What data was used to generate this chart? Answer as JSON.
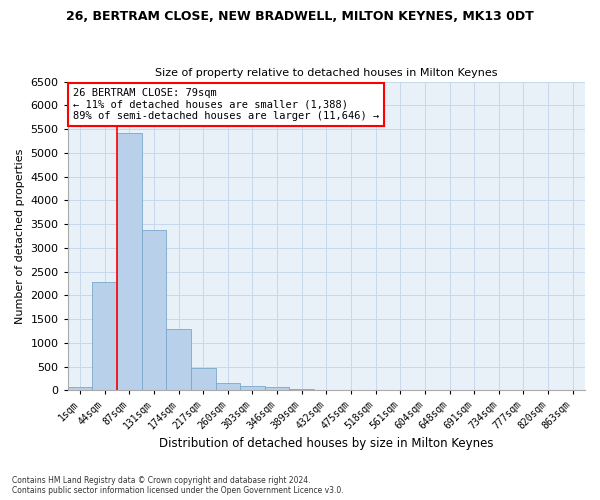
{
  "title": "26, BERTRAM CLOSE, NEW BRADWELL, MILTON KEYNES, MK13 0DT",
  "subtitle": "Size of property relative to detached houses in Milton Keynes",
  "xlabel": "Distribution of detached houses by size in Milton Keynes",
  "ylabel": "Number of detached properties",
  "footnote1": "Contains HM Land Registry data © Crown copyright and database right 2024.",
  "footnote2": "Contains public sector information licensed under the Open Government Licence v3.0.",
  "bar_labels": [
    "1sqm",
    "44sqm",
    "87sqm",
    "131sqm",
    "174sqm",
    "217sqm",
    "260sqm",
    "303sqm",
    "346sqm",
    "389sqm",
    "432sqm",
    "475sqm",
    "518sqm",
    "561sqm",
    "604sqm",
    "648sqm",
    "691sqm",
    "734sqm",
    "777sqm",
    "820sqm",
    "863sqm"
  ],
  "bar_values": [
    75,
    2280,
    5420,
    3380,
    1300,
    480,
    165,
    90,
    65,
    30,
    15,
    10,
    5,
    3,
    2,
    1,
    1,
    0,
    0,
    0,
    0
  ],
  "bar_color": "#b8d0ea",
  "bar_edge_color": "#7aa8cc",
  "grid_color": "#c8d8ec",
  "background_color": "#e8f0f8",
  "vline_x_index": 2,
  "annotation_text": "26 BERTRAM CLOSE: 79sqm\n← 11% of detached houses are smaller (1,388)\n89% of semi-detached houses are larger (11,646) →",
  "annotation_box_color": "red",
  "vline_color": "red",
  "ylim": [
    0,
    6500
  ],
  "yticks": [
    0,
    500,
    1000,
    1500,
    2000,
    2500,
    3000,
    3500,
    4000,
    4500,
    5000,
    5500,
    6000,
    6500
  ]
}
